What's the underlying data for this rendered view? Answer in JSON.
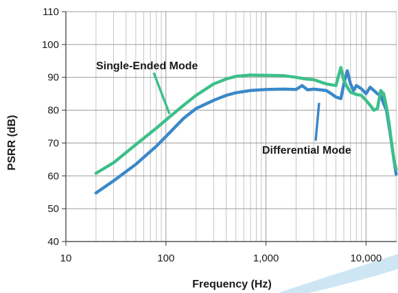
{
  "chart_data": {
    "type": "line",
    "xlabel": "Frequency (Hz)",
    "ylabel": "PSRR (dB)",
    "xscale": "log",
    "xlim": [
      10,
      20000
    ],
    "ylim": [
      40,
      110
    ],
    "xticks": [
      10,
      100,
      1000,
      10000
    ],
    "xtick_labels": [
      "10",
      "100",
      "1,000",
      "10,000"
    ],
    "yticks": [
      40,
      50,
      60,
      70,
      80,
      90,
      100,
      110
    ],
    "ytick_labels": [
      "40",
      "50",
      "60",
      "70",
      "80",
      "90",
      "100",
      "110"
    ],
    "grid": true,
    "series": [
      {
        "name": "Single-Ended Mode",
        "color": "#3dbf8a",
        "x": [
          20,
          30,
          50,
          80,
          100,
          150,
          200,
          300,
          400,
          500,
          700,
          1000,
          1500,
          2000,
          2500,
          3000,
          4000,
          5000,
          5600,
          6000,
          6500,
          7000,
          8000,
          9000,
          10000,
          11000,
          12000,
          13000,
          14000,
          15000,
          16000,
          17000,
          18000,
          19000,
          20000
        ],
        "values": [
          60.8,
          64,
          69.5,
          74.5,
          77,
          81.5,
          84.5,
          88,
          89.5,
          90.3,
          90.7,
          90.6,
          90.5,
          90,
          89.5,
          89.3,
          88,
          87.5,
          93,
          89,
          87,
          85.5,
          84.8,
          84.5,
          83,
          81.5,
          80,
          80.5,
          86,
          85,
          81,
          76,
          70,
          65,
          62
        ]
      },
      {
        "name": "Differential Mode",
        "color": "#3a88c8",
        "x": [
          20,
          30,
          50,
          80,
          100,
          150,
          200,
          300,
          400,
          500,
          700,
          1000,
          1500,
          2000,
          2300,
          2600,
          3000,
          4000,
          4500,
          5000,
          5600,
          6000,
          6500,
          7000,
          7500,
          8000,
          9000,
          10000,
          11000,
          12000,
          13000,
          14000,
          15000,
          16000,
          17000,
          18000,
          19000,
          20000
        ],
        "values": [
          54.8,
          58.5,
          63.5,
          69,
          72,
          77.5,
          80.5,
          83,
          84.5,
          85.3,
          86,
          86.3,
          86.4,
          86.3,
          87.5,
          86.2,
          86.4,
          86,
          85,
          84,
          83.5,
          88,
          92,
          88,
          86,
          87.5,
          86.5,
          85,
          87,
          86,
          85,
          84.5,
          82,
          80,
          75,
          70,
          65,
          60.5
        ]
      }
    ],
    "annotations": [
      {
        "text": "Single-Ended Mode",
        "series": 0
      },
      {
        "text": "Differential Mode",
        "series": 1
      }
    ]
  }
}
